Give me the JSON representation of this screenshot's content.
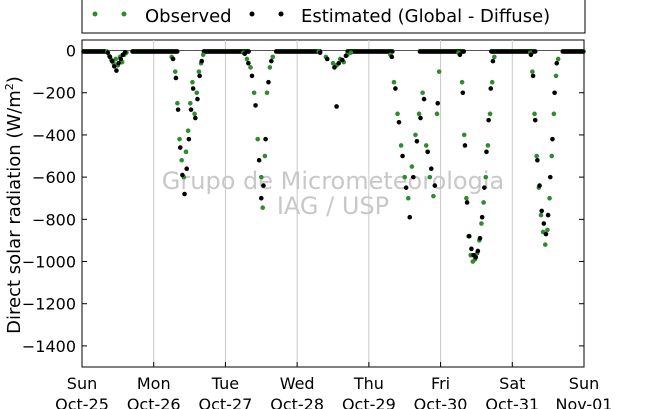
{
  "chart_data": {
    "type": "scatter",
    "title": "",
    "ylabel_main": "Direct solar radiation (W/m",
    "ylabel_sup": "2",
    "ylabel_close": ")",
    "xlabel": "",
    "ylim": [
      -1500,
      50
    ],
    "yticks": [
      0,
      -200,
      -400,
      -600,
      -800,
      -1000,
      -1200,
      -1400
    ],
    "xlim": [
      0,
      7
    ],
    "xticks": [
      {
        "x": 0,
        "day": "Sun",
        "date": "Oct-25"
      },
      {
        "x": 1,
        "day": "Mon",
        "date": "Oct-26"
      },
      {
        "x": 2,
        "day": "Tue",
        "date": "Oct-27"
      },
      {
        "x": 3,
        "day": "Wed",
        "date": "Oct-28"
      },
      {
        "x": 4,
        "day": "Thu",
        "date": "Oct-29"
      },
      {
        "x": 5,
        "day": "Fri",
        "date": "Oct-30"
      },
      {
        "x": 6,
        "day": "Sat",
        "date": "Oct-31"
      },
      {
        "x": 7,
        "day": "Sun",
        "date": "Nov-01"
      }
    ],
    "grid": "vertical",
    "zero_line": true,
    "legend_position": "top-center",
    "watermark": [
      "Grupo de Micrometeorologia",
      "IAG / USP"
    ],
    "series": [
      {
        "name": "Observed",
        "color": "#2e8b2e",
        "points": [
          [
            0.35,
            -5
          ],
          [
            0.38,
            -25
          ],
          [
            0.41,
            -45
          ],
          [
            0.44,
            -60
          ],
          [
            0.47,
            -40
          ],
          [
            0.5,
            -70
          ],
          [
            0.53,
            -30
          ],
          [
            0.56,
            -55
          ],
          [
            0.59,
            -20
          ],
          [
            0.62,
            -10
          ],
          [
            1.25,
            -30
          ],
          [
            1.3,
            -100
          ],
          [
            1.33,
            -250
          ],
          [
            1.36,
            -420
          ],
          [
            1.39,
            -520
          ],
          [
            1.42,
            -600
          ],
          [
            1.45,
            -480
          ],
          [
            1.48,
            -380
          ],
          [
            1.51,
            -250
          ],
          [
            1.54,
            -150
          ],
          [
            1.57,
            -300
          ],
          [
            1.6,
            -200
          ],
          [
            1.63,
            -100
          ],
          [
            1.66,
            -60
          ],
          [
            1.69,
            -20
          ],
          [
            2.25,
            -10
          ],
          [
            2.3,
            -40
          ],
          [
            2.35,
            -80
          ],
          [
            2.4,
            -200
          ],
          [
            2.45,
            -420
          ],
          [
            2.5,
            -600
          ],
          [
            2.52,
            -745
          ],
          [
            2.55,
            -500
          ],
          [
            2.58,
            -200
          ],
          [
            2.62,
            -80
          ],
          [
            2.66,
            -30
          ],
          [
            3.3,
            -5
          ],
          [
            3.4,
            -30
          ],
          [
            3.5,
            -60
          ],
          [
            3.55,
            -70
          ],
          [
            3.6,
            -40
          ],
          [
            3.65,
            -55
          ],
          [
            3.7,
            -20
          ],
          [
            3.75,
            -10
          ],
          [
            4.3,
            -20
          ],
          [
            4.35,
            -150
          ],
          [
            4.4,
            -300
          ],
          [
            4.45,
            -450
          ],
          [
            4.5,
            -600
          ],
          [
            4.55,
            -700
          ],
          [
            4.6,
            -550
          ],
          [
            4.65,
            -400
          ],
          [
            4.7,
            -300
          ],
          [
            4.75,
            -200
          ],
          [
            4.8,
            -450
          ],
          [
            4.85,
            -600
          ],
          [
            4.9,
            -690
          ],
          [
            4.95,
            -300
          ],
          [
            4.98,
            -100
          ],
          [
            5.25,
            -10
          ],
          [
            5.3,
            -150
          ],
          [
            5.33,
            -400
          ],
          [
            5.36,
            -700
          ],
          [
            5.39,
            -880
          ],
          [
            5.42,
            -970
          ],
          [
            5.45,
            -1000
          ],
          [
            5.48,
            -990
          ],
          [
            5.51,
            -960
          ],
          [
            5.54,
            -900
          ],
          [
            5.57,
            -820
          ],
          [
            5.6,
            -720
          ],
          [
            5.63,
            -600
          ],
          [
            5.66,
            -450
          ],
          [
            5.69,
            -300
          ],
          [
            5.72,
            -150
          ],
          [
            5.75,
            -30
          ],
          [
            6.25,
            -10
          ],
          [
            6.28,
            -100
          ],
          [
            6.31,
            -300
          ],
          [
            6.34,
            -500
          ],
          [
            6.37,
            -650
          ],
          [
            6.4,
            -780
          ],
          [
            6.43,
            -860
          ],
          [
            6.46,
            -920
          ],
          [
            6.49,
            -850
          ],
          [
            6.52,
            -700
          ],
          [
            6.55,
            -500
          ],
          [
            6.58,
            -300
          ],
          [
            6.61,
            -120
          ],
          [
            6.64,
            -40
          ]
        ]
      },
      {
        "name": "Estimated (Global - Diffuse)",
        "color": "#000000",
        "points": [
          [
            0.36,
            -10
          ],
          [
            0.39,
            -30
          ],
          [
            0.42,
            -50
          ],
          [
            0.45,
            -75
          ],
          [
            0.48,
            -95
          ],
          [
            0.51,
            -60
          ],
          [
            0.54,
            -40
          ],
          [
            0.57,
            -20
          ],
          [
            0.6,
            -8
          ],
          [
            1.27,
            -40
          ],
          [
            1.31,
            -130
          ],
          [
            1.34,
            -280
          ],
          [
            1.37,
            -460
          ],
          [
            1.4,
            -590
          ],
          [
            1.43,
            -680
          ],
          [
            1.46,
            -560
          ],
          [
            1.49,
            -420
          ],
          [
            1.52,
            -280
          ],
          [
            1.55,
            -180
          ],
          [
            1.58,
            -320
          ],
          [
            1.61,
            -230
          ],
          [
            1.64,
            -120
          ],
          [
            1.67,
            -50
          ],
          [
            2.27,
            -15
          ],
          [
            2.32,
            -60
          ],
          [
            2.37,
            -120
          ],
          [
            2.42,
            -260
          ],
          [
            2.47,
            -520
          ],
          [
            2.5,
            -700
          ],
          [
            2.53,
            -640
          ],
          [
            2.56,
            -420
          ],
          [
            2.6,
            -150
          ],
          [
            2.64,
            -50
          ],
          [
            3.32,
            -10
          ],
          [
            3.42,
            -40
          ],
          [
            3.52,
            -80
          ],
          [
            3.55,
            -265
          ],
          [
            3.58,
            -60
          ],
          [
            3.63,
            -45
          ],
          [
            3.68,
            -25
          ],
          [
            4.32,
            -30
          ],
          [
            4.37,
            -180
          ],
          [
            4.42,
            -340
          ],
          [
            4.47,
            -500
          ],
          [
            4.52,
            -650
          ],
          [
            4.57,
            -790
          ],
          [
            4.62,
            -600
          ],
          [
            4.67,
            -430
          ],
          [
            4.72,
            -320
          ],
          [
            4.77,
            -230
          ],
          [
            4.82,
            -480
          ],
          [
            4.87,
            -560
          ],
          [
            4.92,
            -640
          ],
          [
            4.96,
            -250
          ],
          [
            5.27,
            -20
          ],
          [
            5.31,
            -200
          ],
          [
            5.34,
            -450
          ],
          [
            5.37,
            -720
          ],
          [
            5.4,
            -880
          ],
          [
            5.43,
            -940
          ],
          [
            5.46,
            -970
          ],
          [
            5.49,
            -980
          ],
          [
            5.52,
            -950
          ],
          [
            5.55,
            -890
          ],
          [
            5.58,
            -790
          ],
          [
            5.61,
            -650
          ],
          [
            5.64,
            -480
          ],
          [
            5.67,
            -330
          ],
          [
            5.7,
            -180
          ],
          [
            5.73,
            -50
          ],
          [
            6.26,
            -20
          ],
          [
            6.29,
            -120
          ],
          [
            6.32,
            -330
          ],
          [
            6.35,
            -520
          ],
          [
            6.38,
            -640
          ],
          [
            6.41,
            -760
          ],
          [
            6.44,
            -820
          ],
          [
            6.47,
            -870
          ],
          [
            6.5,
            -780
          ],
          [
            6.53,
            -600
          ],
          [
            6.56,
            -420
          ],
          [
            6.59,
            -200
          ],
          [
            6.62,
            -60
          ]
        ]
      }
    ]
  }
}
